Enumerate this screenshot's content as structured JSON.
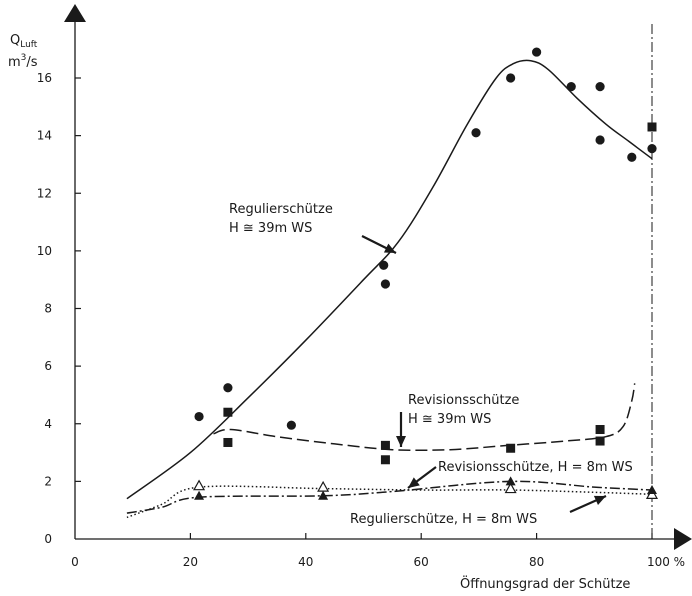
{
  "chart_data": {
    "type": "scatter",
    "title": "",
    "ylabel_main": "Q",
    "ylabel_sub": "Luft",
    "ylabel_unit_base": "m",
    "ylabel_unit_exp": "3",
    "ylabel_unit_tail": "/s",
    "xlabel": "Öffnungsgrad der Schütze",
    "xlim": [
      0,
      100
    ],
    "ylim": [
      0,
      17.5
    ],
    "x_ticks": [
      "0",
      "20",
      "40",
      "60",
      "80",
      "100 %"
    ],
    "x_tick_values": [
      0,
      20,
      40,
      60,
      80,
      100
    ],
    "y_ticks": [
      "0",
      "2",
      "4",
      "6",
      "8",
      "10",
      "12",
      "14",
      "16"
    ],
    "y_tick_values": [
      0,
      2,
      4,
      6,
      8,
      10,
      12,
      14,
      16
    ],
    "vline_x": 100,
    "grid": false,
    "series": [
      {
        "id": "reg39",
        "label_line1": "Regulierschütze",
        "label_line2": "H ≅ 39m WS",
        "marker": "circle",
        "line_style": "solid",
        "points": [
          [
            21.5,
            4.25
          ],
          [
            26.5,
            5.25
          ],
          [
            37.5,
            3.95
          ],
          [
            53.5,
            9.5
          ],
          [
            53.8,
            8.85
          ],
          [
            69.5,
            14.1
          ],
          [
            75.5,
            16.0
          ],
          [
            80,
            16.9
          ],
          [
            86,
            15.7
          ],
          [
            91,
            15.7
          ],
          [
            91,
            13.85
          ],
          [
            96.5,
            13.25
          ],
          [
            100,
            13.55
          ]
        ],
        "curve": [
          [
            9,
            1.4
          ],
          [
            20,
            3.0
          ],
          [
            30,
            4.9
          ],
          [
            40,
            6.9
          ],
          [
            50,
            9.0
          ],
          [
            56,
            10.3
          ],
          [
            62,
            12.2
          ],
          [
            68,
            14.4
          ],
          [
            73,
            16.0
          ],
          [
            76,
            16.5
          ],
          [
            79,
            16.6
          ],
          [
            82,
            16.3
          ],
          [
            87,
            15.3
          ],
          [
            92,
            14.4
          ],
          [
            96,
            13.8
          ],
          [
            100,
            13.2
          ]
        ]
      },
      {
        "id": "rev39",
        "label_line1": "Revisionsschütze",
        "label_line2": "H ≅ 39m WS",
        "marker": "square",
        "line_style": "dashed",
        "points": [
          [
            26.5,
            4.4
          ],
          [
            26.5,
            3.35
          ],
          [
            53.8,
            3.25
          ],
          [
            53.8,
            2.75
          ],
          [
            75.5,
            3.15
          ],
          [
            91,
            3.8
          ],
          [
            91,
            3.4
          ],
          [
            100,
            14.3
          ]
        ],
        "curve": [
          [
            24,
            3.65
          ],
          [
            27,
            3.8
          ],
          [
            35,
            3.55
          ],
          [
            45,
            3.3
          ],
          [
            55,
            3.1
          ],
          [
            65,
            3.1
          ],
          [
            75,
            3.25
          ],
          [
            85,
            3.4
          ],
          [
            92,
            3.55
          ],
          [
            95,
            3.9
          ],
          [
            96.5,
            4.8
          ],
          [
            97,
            5.4
          ]
        ]
      },
      {
        "id": "rev8",
        "label": "Revisionsschütze, H = 8m WS",
        "marker": "triangle-open",
        "line_style": "dotted",
        "points": [
          [
            21.5,
            1.85
          ],
          [
            43,
            1.8
          ],
          [
            75.5,
            1.75
          ],
          [
            100,
            1.55
          ]
        ],
        "curve": [
          [
            9,
            0.75
          ],
          [
            15,
            1.2
          ],
          [
            21.5,
            1.8
          ],
          [
            43,
            1.75
          ],
          [
            60,
            1.7
          ],
          [
            75.5,
            1.7
          ],
          [
            90,
            1.62
          ],
          [
            100,
            1.55
          ]
        ]
      },
      {
        "id": "reg8",
        "label": "Regulierschütze, H = 8m WS",
        "marker": "triangle-filled",
        "line_style": "dashdot",
        "points": [
          [
            21.5,
            1.5
          ],
          [
            43,
            1.5
          ],
          [
            75.5,
            2.0
          ],
          [
            100,
            1.7
          ]
        ],
        "curve": [
          [
            9,
            0.9
          ],
          [
            15,
            1.1
          ],
          [
            21.5,
            1.45
          ],
          [
            43,
            1.5
          ],
          [
            55,
            1.65
          ],
          [
            75.5,
            2.0
          ],
          [
            90,
            1.8
          ],
          [
            100,
            1.7
          ]
        ]
      }
    ]
  }
}
